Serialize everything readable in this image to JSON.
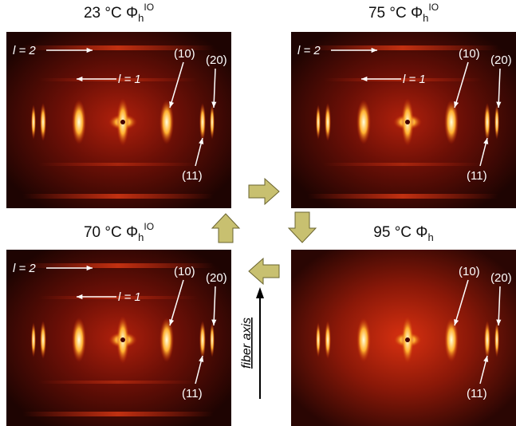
{
  "panels": [
    {
      "title": {
        "main": "23 °C Φ",
        "sub": "h",
        "sup": "IO"
      },
      "labels": {
        "l2": "l = 2",
        "l1": "l = 1",
        "p10": "(10)",
        "p20": "(20)",
        "p11": "(11)"
      }
    },
    {
      "title": {
        "main": "75 °C Φ",
        "sub": "h",
        "sup": "IO"
      },
      "labels": {
        "l2": "l = 2",
        "l1": "l = 1",
        "p10": "(10)",
        "p20": "(20)",
        "p11": "(11)"
      }
    },
    {
      "title": {
        "main": "70 °C Φ",
        "sub": "h",
        "sup": "IO"
      },
      "labels": {
        "l2": "l = 2",
        "l1": "l = 1",
        "p10": "(10)",
        "p20": "(20)",
        "p11": "(11)"
      }
    },
    {
      "title": {
        "main": "95 °C Φ",
        "sub": "h"
      },
      "labels": {
        "p10": "(10)",
        "p20": "(20)",
        "p11": "(11)"
      }
    }
  ],
  "fiber_axis": "fiber axis"
}
